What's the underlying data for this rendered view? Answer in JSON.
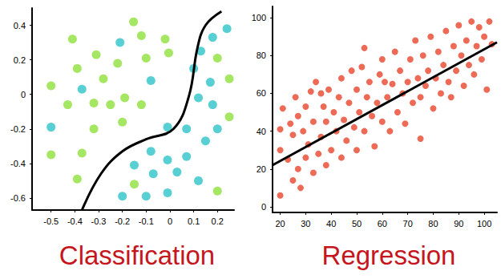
{
  "chart_data": [
    {
      "type": "scatter",
      "title": "Classification",
      "xlim": [
        -0.58,
        0.27
      ],
      "ylim": [
        -0.67,
        0.5
      ],
      "xticks": [
        -0.5,
        -0.4,
        -0.3,
        -0.2,
        -0.1,
        0,
        0.1,
        0.2
      ],
      "yticks": [
        -0.6,
        -0.4,
        -0.2,
        0,
        0.2,
        0.4
      ],
      "grid": false,
      "series": [
        {
          "type": "scatter",
          "color": "#8fe03c",
          "values": [
            [
              -0.153,
              0.42
            ],
            [
              -0.41,
              0.32
            ],
            [
              -0.12,
              0.34
            ],
            [
              -0.02,
              0.32
            ],
            [
              -0.31,
              0.23
            ],
            [
              -0.005,
              0.24
            ],
            [
              -0.1,
              0.21
            ],
            [
              -0.39,
              0.15
            ],
            [
              -0.22,
              0.18
            ],
            [
              -0.5,
              0.05
            ],
            [
              -0.28,
              0.09
            ],
            [
              -0.43,
              -0.06
            ],
            [
              -0.32,
              -0.05
            ],
            [
              -0.19,
              -0.02
            ],
            [
              -0.25,
              -0.06
            ],
            [
              -0.12,
              -0.06
            ],
            [
              -0.5,
              -0.35
            ],
            [
              -0.37,
              -0.34
            ],
            [
              -0.32,
              -0.2
            ],
            [
              -0.39,
              -0.49
            ],
            [
              -0.15,
              -0.52
            ],
            [
              0.2,
              0.21
            ],
            [
              0.25,
              0.09
            ],
            [
              0.25,
              -0.13
            ],
            [
              0.2,
              -0.56
            ],
            [
              -0.2,
              -0.16
            ]
          ]
        },
        {
          "type": "scatter",
          "color": "#2ec4c8",
          "values": [
            [
              -0.21,
              0.3
            ],
            [
              -0.37,
              0.03
            ],
            [
              -0.08,
              0.08
            ],
            [
              -0.5,
              -0.19
            ],
            [
              0.18,
              0.33
            ],
            [
              0.24,
              0.38
            ],
            [
              0.13,
              0.25
            ],
            [
              0.1,
              0.15
            ],
            [
              0.17,
              0.07
            ],
            [
              0.12,
              -0.02
            ],
            [
              0.18,
              -0.06
            ],
            [
              0.2,
              -0.2
            ],
            [
              0.07,
              -0.2
            ],
            [
              -0.01,
              -0.19
            ],
            [
              0.15,
              -0.27
            ],
            [
              0.07,
              -0.36
            ],
            [
              -0.01,
              -0.38
            ],
            [
              -0.08,
              -0.33
            ],
            [
              -0.15,
              -0.41
            ],
            [
              -0.07,
              -0.46
            ],
            [
              0.03,
              -0.45
            ],
            [
              0.12,
              -0.5
            ],
            [
              -0.01,
              -0.57
            ],
            [
              -0.1,
              -0.59
            ],
            [
              -0.2,
              -0.59
            ]
          ]
        },
        {
          "type": "line",
          "color": "#000000",
          "values": [
            [
              -0.37,
              -0.67
            ],
            [
              -0.29,
              -0.46
            ],
            [
              -0.2,
              -0.33
            ],
            [
              -0.1,
              -0.26
            ],
            [
              0.015,
              -0.2
            ],
            [
              0.08,
              -0.01
            ],
            [
              0.116,
              0.27
            ],
            [
              0.15,
              0.4
            ],
            [
              0.217,
              0.48
            ]
          ]
        }
      ]
    },
    {
      "type": "scatter",
      "title": "Regression",
      "xlim": [
        17,
        105
      ],
      "ylim": [
        -3,
        106
      ],
      "xticks": [
        20,
        30,
        40,
        50,
        60,
        70,
        80,
        90,
        100
      ],
      "yticks": [
        0,
        20,
        40,
        60,
        80,
        100
      ],
      "grid": false,
      "series": [
        {
          "type": "scatter",
          "color": "#e8452c",
          "values": [
            [
              20,
              6
            ],
            [
              20,
              30
            ],
            [
              20,
              41
            ],
            [
              21,
              52
            ],
            [
              23,
              25
            ],
            [
              24,
              44
            ],
            [
              25,
              14
            ],
            [
              25,
              38
            ],
            [
              27,
              20
            ],
            [
              27,
              48
            ],
            [
              28,
              10
            ],
            [
              29,
              40
            ],
            [
              30,
              26
            ],
            [
              30,
              53
            ],
            [
              31,
              33
            ],
            [
              32,
              61
            ],
            [
              33,
              18
            ],
            [
              33,
              45
            ],
            [
              34,
              66
            ],
            [
              35,
              28
            ],
            [
              36,
              37
            ],
            [
              37,
              53
            ],
            [
              38,
              22
            ],
            [
              38,
              45
            ],
            [
              39,
              62
            ],
            [
              40,
              30
            ],
            [
              41,
              50
            ],
            [
              42,
              40
            ],
            [
              43,
              58
            ],
            [
              44,
              26
            ],
            [
              44,
              68
            ],
            [
              45,
              46
            ],
            [
              46,
              35
            ],
            [
              47,
              55
            ],
            [
              48,
              72
            ],
            [
              49,
              42
            ],
            [
              50,
              30
            ],
            [
              50,
              62
            ],
            [
              51,
              50
            ],
            [
              52,
              74
            ],
            [
              53,
              40
            ],
            [
              54,
              58
            ],
            [
              55,
              66
            ],
            [
              56,
              48
            ],
            [
              57,
              32
            ],
            [
              58,
              55
            ],
            [
              59,
              70
            ],
            [
              60,
              45
            ],
            [
              60,
              78
            ],
            [
              62,
              58
            ],
            [
              63,
              40
            ],
            [
              64,
              65
            ],
            [
              65,
              82
            ],
            [
              66,
              50
            ],
            [
              67,
              72
            ],
            [
              68,
              60
            ],
            [
              69,
              44
            ],
            [
              70,
              66
            ],
            [
              71,
              78
            ],
            [
              72,
              55
            ],
            [
              73,
              88
            ],
            [
              74,
              68
            ],
            [
              75,
              36
            ],
            [
              75,
              58
            ],
            [
              76,
              80
            ],
            [
              77,
              64
            ],
            [
              78,
              72
            ],
            [
              79,
              90
            ],
            [
              80,
              52
            ],
            [
              81,
              68
            ],
            [
              82,
              82
            ],
            [
              83,
              60
            ],
            [
              84,
              75
            ],
            [
              85,
              93
            ],
            [
              86,
              66
            ],
            [
              87,
              58
            ],
            [
              88,
              85
            ],
            [
              89,
              72
            ],
            [
              90,
              96
            ],
            [
              91,
              80
            ],
            [
              92,
              64
            ],
            [
              93,
              88
            ],
            [
              94,
              75
            ],
            [
              95,
              98
            ],
            [
              96,
              70
            ],
            [
              97,
              85
            ],
            [
              98,
              95
            ],
            [
              99,
              78
            ],
            [
              100,
              90
            ],
            [
              101,
              62
            ],
            [
              102,
              98
            ],
            [
              103,
              86
            ],
            [
              26,
              58
            ],
            [
              36,
              60
            ],
            [
              53,
              84
            ],
            [
              61,
              66
            ]
          ]
        },
        {
          "type": "line",
          "color": "#000000",
          "values": [
            [
              17,
              22
            ],
            [
              105,
              87
            ]
          ]
        }
      ]
    }
  ]
}
